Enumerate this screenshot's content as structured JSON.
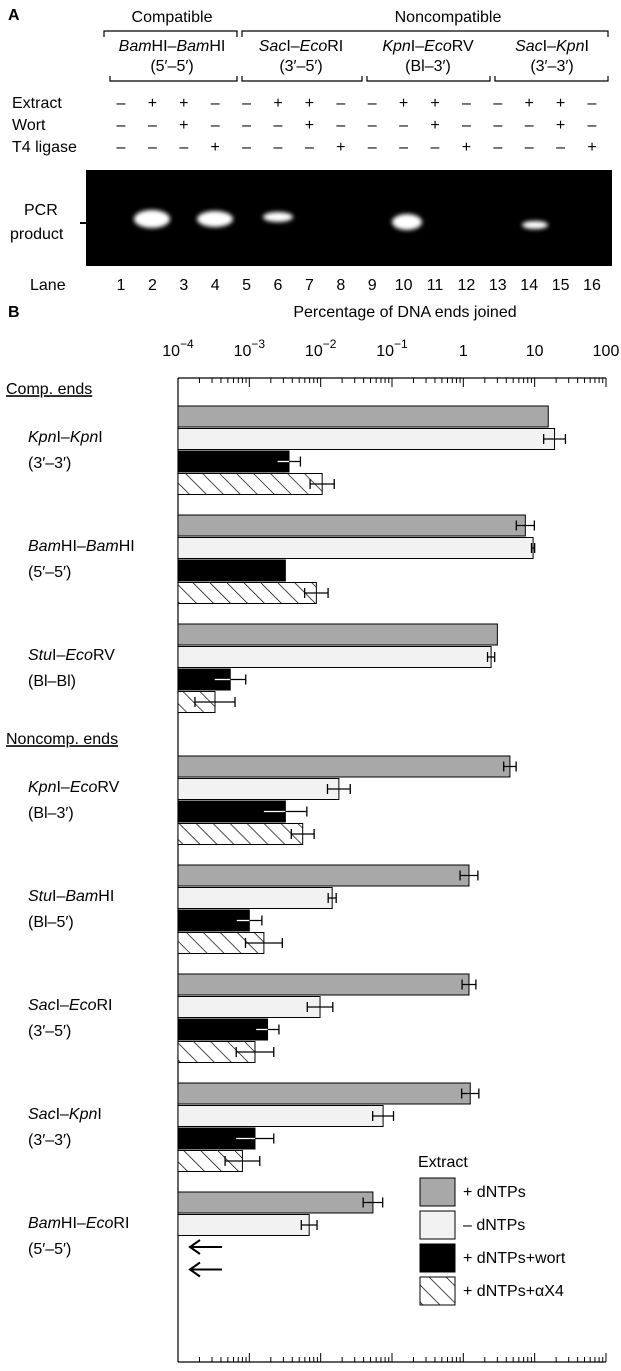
{
  "panel_a": {
    "label": "A",
    "groups": [
      "Compatible",
      "Noncompatible"
    ],
    "pairs": [
      {
        "name": "BamHI–BamHI",
        "ends": "(5′–5′)"
      },
      {
        "name": "SacI–EcoRI",
        "ends": "(3′–5′)"
      },
      {
        "name": "KpnI–EcoRV",
        "ends": "(Bl–3′)"
      },
      {
        "name": "SacI–KpnI",
        "ends": "(3′–3′)"
      }
    ],
    "rows": [
      {
        "label": "Extract",
        "signs": [
          "–",
          "+",
          "+",
          "–",
          "–",
          "+",
          "+",
          "–",
          "–",
          "+",
          "+",
          "–",
          "–",
          "+",
          "+",
          "–"
        ]
      },
      {
        "label": "Wort",
        "signs": [
          "–",
          "–",
          "+",
          "–",
          "–",
          "–",
          "+",
          "–",
          "–",
          "–",
          "+",
          "–",
          "–",
          "–",
          "+",
          "–"
        ]
      },
      {
        "label": "T4 ligase",
        "signs": [
          "–",
          "–",
          "–",
          "+",
          "–",
          "–",
          "–",
          "+",
          "–",
          "–",
          "–",
          "+",
          "–",
          "–",
          "–",
          "+"
        ]
      }
    ],
    "gel_label": [
      "PCR",
      "product"
    ],
    "lane_label": "Lane",
    "lanes": [
      1,
      2,
      3,
      4,
      5,
      6,
      7,
      8,
      9,
      10,
      11,
      12,
      13,
      14,
      15,
      16
    ]
  },
  "chart_data": {
    "type": "bar",
    "panel_label": "B",
    "orientation": "horizontal",
    "xlabel": "Percentage of DNA ends joined",
    "xscale": "log",
    "xlim": [
      0.0001,
      100
    ],
    "xticks": [
      {
        "value": 0.0001,
        "label": "10−4"
      },
      {
        "value": 0.001,
        "label": "10−3"
      },
      {
        "value": 0.01,
        "label": "10−2"
      },
      {
        "value": 0.1,
        "label": "10−1"
      },
      1,
      10,
      100
    ],
    "groups": [
      {
        "label": "Comp. ends",
        "categories": [
          {
            "name": "KpnI–KpnI",
            "ends": "(3′–3′)"
          },
          {
            "name": "BamHI–BamHI",
            "ends": "(5′–5′)"
          },
          {
            "name": "StuI–EcoRV",
            "ends": "(Bl–Bl)"
          }
        ]
      },
      {
        "label": "Noncomp. ends",
        "categories": [
          {
            "name": "KpnI–EcoRV",
            "ends": "(Bl–3′)"
          },
          {
            "name": "StuI–BamHI",
            "ends": "(Bl–5′)"
          },
          {
            "name": "SacI–EcoRI",
            "ends": "(3′–5′)"
          },
          {
            "name": "SacI–KpnI",
            "ends": "(3′–3′)"
          },
          {
            "name": "BamHI–EcoRI",
            "ends": "(5′–5′)"
          }
        ]
      }
    ],
    "legend_title": "Extract",
    "legend": "lower right",
    "series": [
      {
        "name": "+ dNTPs",
        "color": "#a8a8a8",
        "values": [
          15.5,
          7.4,
          3,
          4.5,
          1.2,
          1.2,
          1.25,
          0.054
        ],
        "errors": [
          null,
          2.5,
          null,
          1,
          0.4,
          0.3,
          0.4,
          0.02
        ]
      },
      {
        "name": "– dNTPs",
        "color": "#f2f2f2",
        "values": [
          19,
          9.5,
          2.45,
          0.018,
          0.0145,
          0.0098,
          0.075,
          0.0069
        ],
        "errors": [
          8,
          0.5,
          0.3,
          0.008,
          0.002,
          0.005,
          0.03,
          0.002
        ]
      },
      {
        "name": "+ dNTPs+wort",
        "color": "#000000",
        "values": [
          0.0036,
          0.0032,
          0.00054,
          0.0032,
          0.001,
          0.0018,
          0.0012,
          null
        ],
        "errors": [
          0.0016,
          null,
          0.00035,
          0.0032,
          0.0005,
          0.0008,
          0.001,
          null
        ]
      },
      {
        "name": "+ dNTPs+αX4",
        "color": "hatch",
        "values": [
          0.0105,
          0.0087,
          0.00033,
          0.0056,
          0.0016,
          0.0012,
          0.0008,
          null
        ],
        "errors": [
          0.005,
          0.004,
          0.0003,
          0.0025,
          0.0013,
          0.001,
          0.0006,
          null
        ]
      }
    ]
  }
}
